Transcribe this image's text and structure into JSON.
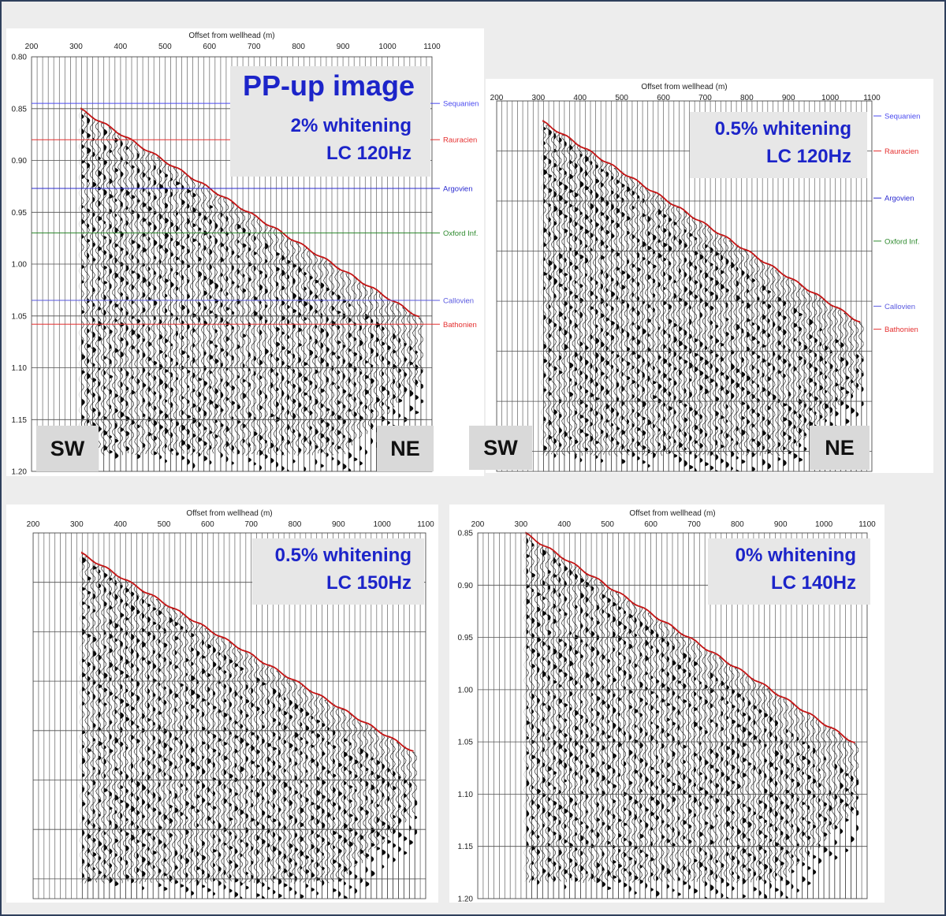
{
  "offset_axis_title": "Offset from wellhead (m)",
  "offset_ticks": [
    "200",
    "300",
    "400",
    "500",
    "600",
    "700",
    "800",
    "900",
    "1000",
    "1100"
  ],
  "time_ticks": [
    "0.80",
    "0.85",
    "0.90",
    "0.95",
    "1.00",
    "1.05",
    "1.10",
    "1.15",
    "1.20"
  ],
  "time_ticks_bottom_right": [
    "0.85",
    "0.90",
    "0.95",
    "1.00",
    "1.05",
    "1.10",
    "1.15",
    "1.20"
  ],
  "horizons": [
    {
      "name": "Sequanien",
      "color": "#4a4af0"
    },
    {
      "name": "Rauracien",
      "color": "#e53030"
    },
    {
      "name": "Argovien",
      "color": "#2a2ad0"
    },
    {
      "name": "Oxford Inf.",
      "color": "#2e8a2e"
    },
    {
      "name": "Callovien",
      "color": "#5a5ae0"
    },
    {
      "name": "Bathonien",
      "color": "#e53030"
    }
  ],
  "first_break_color": "#c41414",
  "panels": {
    "top_left": {
      "title": "PP-up image",
      "line1": "2% whitening",
      "line2": "LC 120Hz",
      "left_dir": "SW",
      "right_dir": "NE"
    },
    "top_right": {
      "line1": "0.5% whitening",
      "line2": "LC 120Hz",
      "left_dir": "SW",
      "right_dir": "NE"
    },
    "bottom_left": {
      "line1": "0.5% whitening",
      "line2": "LC 150Hz"
    },
    "bottom_right": {
      "line1": "0% whitening",
      "line2": "LC 140Hz"
    }
  }
}
